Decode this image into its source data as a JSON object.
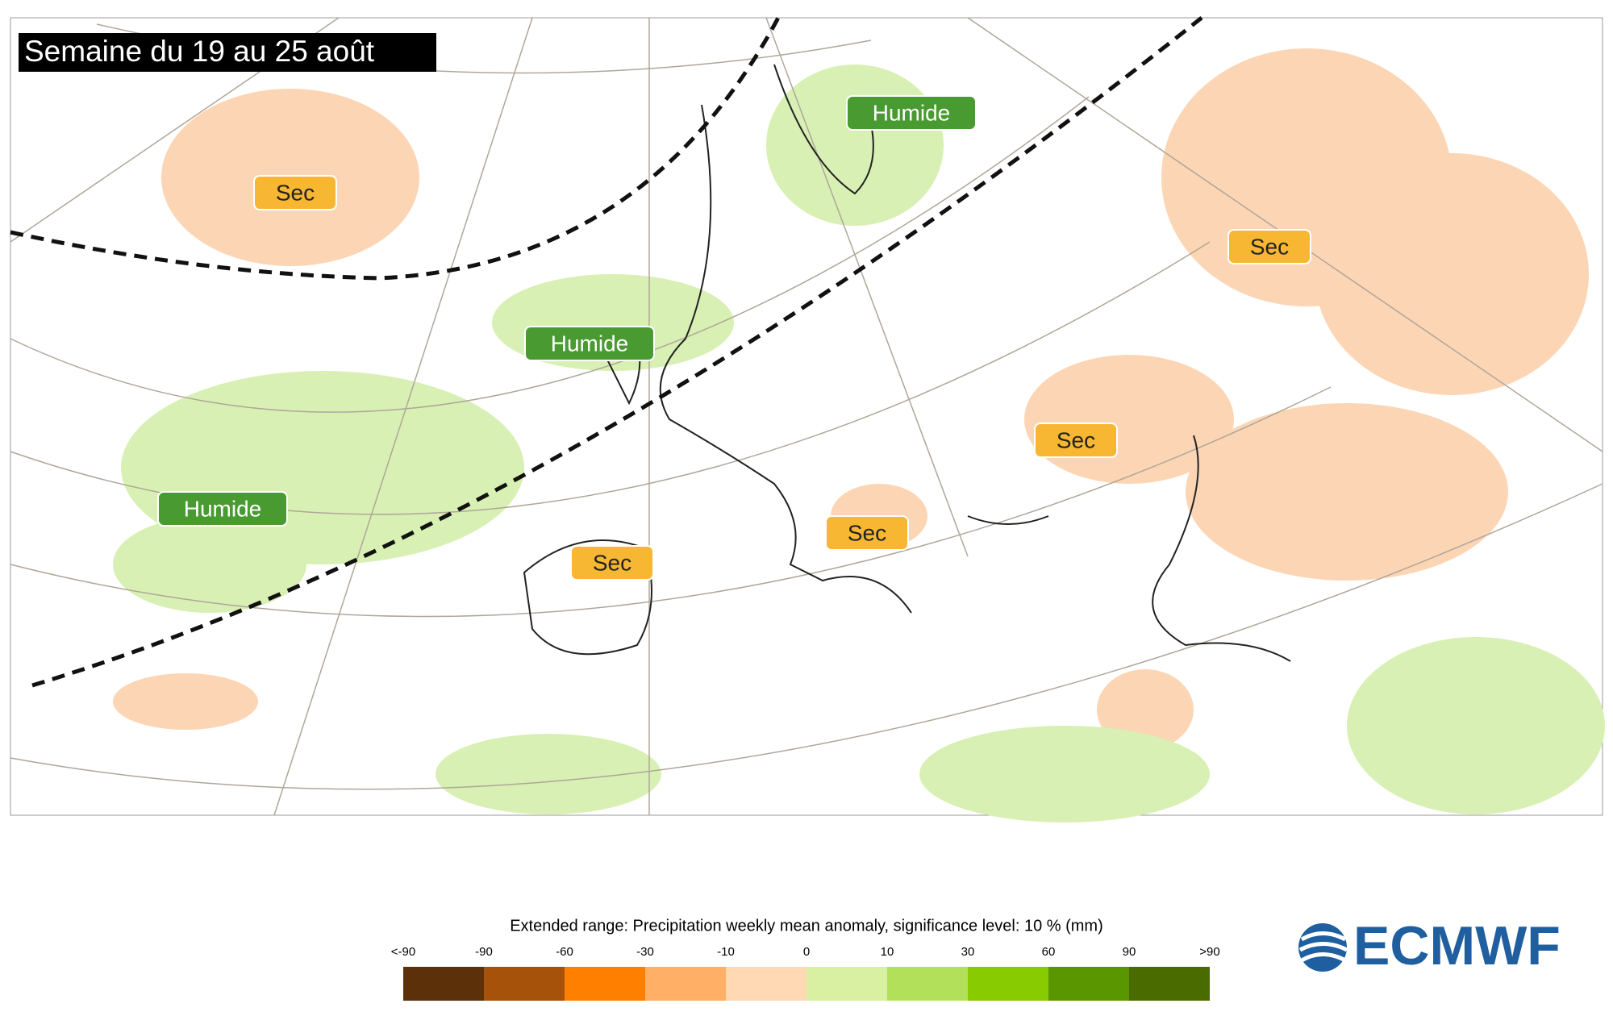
{
  "header": {
    "title": "Semaine du 19 au 25 août"
  },
  "map_labels": [
    "Sec",
    "Humide",
    "Humide",
    "Sec",
    "Humide",
    "Sec",
    "Sec",
    "Sec"
  ],
  "legend": {
    "title": "Extended range: Precipitation weekly mean anomaly, significance level: 10 % (mm)",
    "ticks": [
      "<-90",
      "-90",
      "-60",
      "-30",
      "-10",
      "0",
      "10",
      "30",
      "60",
      "90",
      ">90"
    ],
    "colors": [
      "#5c3008",
      "#a6520a",
      "#ff7f00",
      "#ffb066",
      "#ffd9b3",
      "#d9f0a3",
      "#b3e05a",
      "#88cc00",
      "#5a9600",
      "#4a6b00"
    ]
  },
  "logo": "ECMWF"
}
